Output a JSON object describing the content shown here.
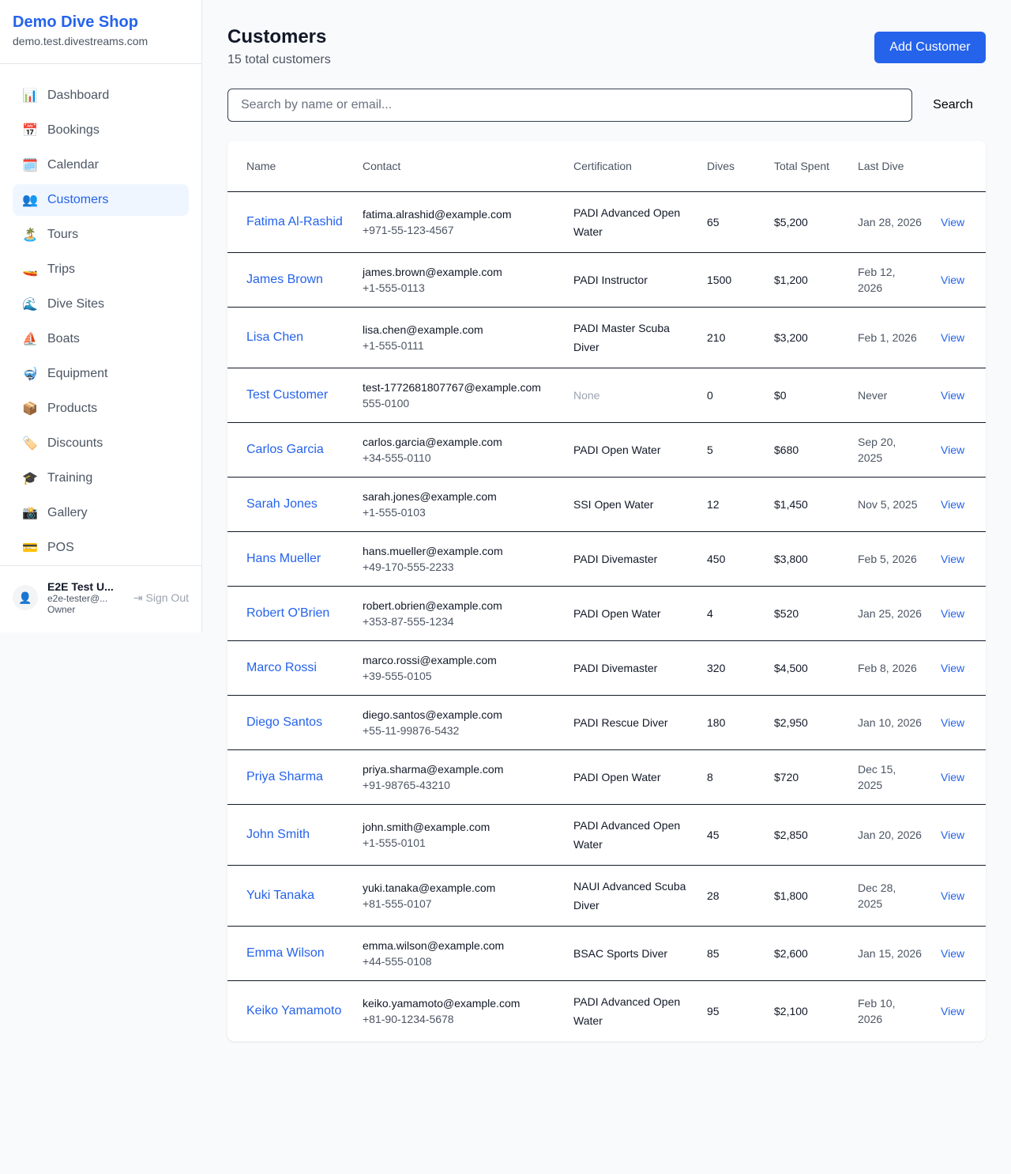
{
  "sidebar": {
    "brand": "Demo Dive Shop",
    "domain": "demo.test.divestreams.com",
    "items": [
      {
        "label": "Dashboard",
        "icon": "📊"
      },
      {
        "label": "Bookings",
        "icon": "📅"
      },
      {
        "label": "Calendar",
        "icon": "🗓️"
      },
      {
        "label": "Customers",
        "icon": "👥",
        "active": true
      },
      {
        "label": "Tours",
        "icon": "🏝️"
      },
      {
        "label": "Trips",
        "icon": "🚤"
      },
      {
        "label": "Dive Sites",
        "icon": "🌊"
      },
      {
        "label": "Boats",
        "icon": "⛵"
      },
      {
        "label": "Equipment",
        "icon": "🤿"
      },
      {
        "label": "Products",
        "icon": "📦"
      },
      {
        "label": "Discounts",
        "icon": "🏷️"
      },
      {
        "label": "Training",
        "icon": "🎓"
      },
      {
        "label": "Gallery",
        "icon": "📸"
      },
      {
        "label": "POS",
        "icon": "💳"
      }
    ],
    "user": {
      "name": "E2E Test U...",
      "email": "e2e-tester@...",
      "role": "Owner",
      "sign_out": "Sign Out"
    }
  },
  "header": {
    "title": "Customers",
    "subtitle": "15 total customers",
    "add_button": "Add Customer"
  },
  "search": {
    "placeholder": "Search by name or email...",
    "button": "Search"
  },
  "table": {
    "columns": [
      "Name",
      "Contact",
      "Certification",
      "Dives",
      "Total Spent",
      "Last Dive",
      ""
    ],
    "rows": [
      {
        "name": "Fatima Al-Rashid",
        "email": "fatima.alrashid@example.com",
        "phone": "+971-55-123-4567",
        "cert": "PADI Advanced Open Water",
        "dives": "65",
        "spent": "$5,200",
        "last": "Jan 28, 2026",
        "action": "View"
      },
      {
        "name": "James Brown",
        "email": "james.brown@example.com",
        "phone": "+1-555-0113",
        "cert": "PADI Instructor",
        "dives": "1500",
        "spent": "$1,200",
        "last": "Feb 12, 2026",
        "action": "View"
      },
      {
        "name": "Lisa Chen",
        "email": "lisa.chen@example.com",
        "phone": "+1-555-0111",
        "cert": "PADI Master Scuba Diver",
        "dives": "210",
        "spent": "$3,200",
        "last": "Feb 1, 2026",
        "action": "View"
      },
      {
        "name": "Test Customer",
        "email": "test-1772681807767@example.com",
        "phone": "555-0100",
        "cert": "None",
        "dives": "0",
        "spent": "$0",
        "last": "Never",
        "action": "View"
      },
      {
        "name": "Carlos Garcia",
        "email": "carlos.garcia@example.com",
        "phone": "+34-555-0110",
        "cert": "PADI Open Water",
        "dives": "5",
        "spent": "$680",
        "last": "Sep 20, 2025",
        "action": "View"
      },
      {
        "name": "Sarah Jones",
        "email": "sarah.jones@example.com",
        "phone": "+1-555-0103",
        "cert": "SSI Open Water",
        "dives": "12",
        "spent": "$1,450",
        "last": "Nov 5, 2025",
        "action": "View"
      },
      {
        "name": "Hans Mueller",
        "email": "hans.mueller@example.com",
        "phone": "+49-170-555-2233",
        "cert": "PADI Divemaster",
        "dives": "450",
        "spent": "$3,800",
        "last": "Feb 5, 2026",
        "action": "View"
      },
      {
        "name": "Robert O'Brien",
        "email": "robert.obrien@example.com",
        "phone": "+353-87-555-1234",
        "cert": "PADI Open Water",
        "dives": "4",
        "spent": "$520",
        "last": "Jan 25, 2026",
        "action": "View"
      },
      {
        "name": "Marco Rossi",
        "email": "marco.rossi@example.com",
        "phone": "+39-555-0105",
        "cert": "PADI Divemaster",
        "dives": "320",
        "spent": "$4,500",
        "last": "Feb 8, 2026",
        "action": "View"
      },
      {
        "name": "Diego Santos",
        "email": "diego.santos@example.com",
        "phone": "+55-11-99876-5432",
        "cert": "PADI Rescue Diver",
        "dives": "180",
        "spent": "$2,950",
        "last": "Jan 10, 2026",
        "action": "View"
      },
      {
        "name": "Priya Sharma",
        "email": "priya.sharma@example.com",
        "phone": "+91-98765-43210",
        "cert": "PADI Open Water",
        "dives": "8",
        "spent": "$720",
        "last": "Dec 15, 2025",
        "action": "View"
      },
      {
        "name": "John Smith",
        "email": "john.smith@example.com",
        "phone": "+1-555-0101",
        "cert": "PADI Advanced Open Water",
        "dives": "45",
        "spent": "$2,850",
        "last": "Jan 20, 2026",
        "action": "View"
      },
      {
        "name": "Yuki Tanaka",
        "email": "yuki.tanaka@example.com",
        "phone": "+81-555-0107",
        "cert": "NAUI Advanced Scuba Diver",
        "dives": "28",
        "spent": "$1,800",
        "last": "Dec 28, 2025",
        "action": "View"
      },
      {
        "name": "Emma Wilson",
        "email": "emma.wilson@example.com",
        "phone": "+44-555-0108",
        "cert": "BSAC Sports Diver",
        "dives": "85",
        "spent": "$2,600",
        "last": "Jan 15, 2026",
        "action": "View"
      },
      {
        "name": "Keiko Yamamoto",
        "email": "keiko.yamamoto@example.com",
        "phone": "+81-90-1234-5678",
        "cert": "PADI Advanced Open Water",
        "dives": "95",
        "spent": "$2,100",
        "last": "Feb 10, 2026",
        "action": "View"
      }
    ]
  }
}
